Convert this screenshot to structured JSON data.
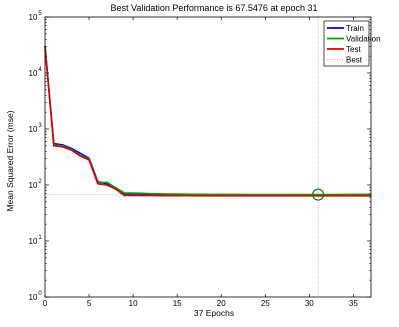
{
  "chart_data": {
    "type": "line",
    "title": "Best Validation Performance is 67.5476 at epoch 31",
    "xlabel": "37 Epochs",
    "ylabel": "Mean Squared Error  (mse)",
    "xlim": [
      0,
      37
    ],
    "ylim": [
      1,
      100000
    ],
    "y_scale": "log",
    "x_ticks": [
      "0",
      "5",
      "10",
      "15",
      "20",
      "25",
      "30",
      "35"
    ],
    "y_ticks": [
      {
        "base": "10",
        "exp": "0"
      },
      {
        "base": "10",
        "exp": "1"
      },
      {
        "base": "10",
        "exp": "2"
      },
      {
        "base": "10",
        "exp": "3"
      },
      {
        "base": "10",
        "exp": "4"
      },
      {
        "base": "10",
        "exp": "5"
      }
    ],
    "legend_position": "top-right",
    "x": [
      0,
      1,
      2,
      3,
      4,
      5,
      6,
      7,
      8,
      9,
      10,
      11,
      12,
      13,
      14,
      15,
      16,
      17,
      18,
      19,
      20,
      21,
      22,
      23,
      24,
      25,
      26,
      27,
      28,
      29,
      30,
      31,
      32,
      33,
      34,
      35,
      36,
      37
    ],
    "series": [
      {
        "name": "Train",
        "color": "#0000ff",
        "values": [
          30000,
          550,
          520,
          450,
          370,
          300,
          115,
          105,
          85,
          70,
          70,
          69,
          68,
          67.5,
          67.2,
          67,
          66.8,
          66.6,
          66.5,
          66.4,
          66.3,
          66.2,
          66.1,
          66,
          65.9,
          65.8,
          65.7,
          65.6,
          65.5,
          65.4,
          65.3,
          65.2,
          65.1,
          65,
          64.9,
          64.8,
          64.7,
          64.6
        ]
      },
      {
        "name": "Validation",
        "color": "#00a000",
        "values": [
          30000,
          520,
          500,
          430,
          340,
          290,
          110,
          112,
          90,
          72,
          72,
          71,
          70,
          69.5,
          69,
          68.8,
          68.6,
          68.4,
          68.2,
          68,
          67.9,
          67.8,
          67.8,
          67.7,
          67.7,
          67.6,
          67.6,
          67.6,
          67.6,
          67.6,
          67.55,
          67.5476,
          67.6,
          67.7,
          67.8,
          67.9,
          68,
          68.1
        ]
      },
      {
        "name": "Test",
        "color": "#e00000",
        "values": [
          30000,
          500,
          480,
          420,
          330,
          280,
          105,
          100,
          85,
          65,
          65,
          64.8,
          64.6,
          64.5,
          64.4,
          64.3,
          64.3,
          64.2,
          64.2,
          64.1,
          64.1,
          64.1,
          64,
          64,
          64,
          64,
          64,
          64,
          64,
          64,
          64,
          64,
          64,
          64,
          64,
          64,
          64,
          64
        ]
      }
    ],
    "best": {
      "name": "Best",
      "epoch": 31,
      "value": 67.5476
    }
  }
}
